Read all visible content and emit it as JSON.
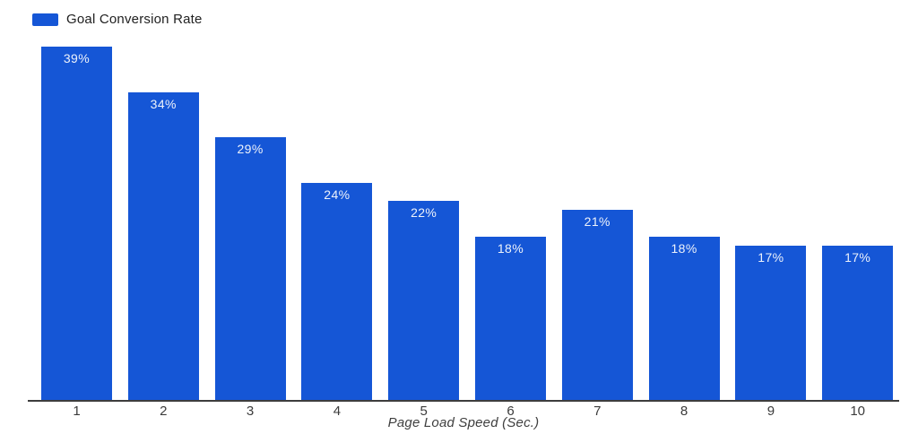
{
  "chart_data": {
    "type": "bar",
    "title": "",
    "categories": [
      "1",
      "2",
      "3",
      "4",
      "5",
      "6",
      "7",
      "8",
      "9",
      "10"
    ],
    "series": [
      {
        "name": "Goal Conversion Rate",
        "values": [
          39,
          34,
          29,
          24,
          22,
          18,
          21,
          18,
          17,
          17
        ]
      }
    ],
    "bar_labels": [
      "39%",
      "34%",
      "29%",
      "24%",
      "22%",
      "18%",
      "21%",
      "18%",
      "17%",
      "17%"
    ],
    "value_suffix": "%",
    "xlabel": "Page Load Speed (Sec.)",
    "ylabel": "",
    "ylim": [
      0,
      40
    ],
    "grid": false,
    "legend_position": "top-left",
    "colors": {
      "bar": "#1556d6",
      "bar_label": "#edf2fb",
      "axis_line": "#3d3d3d",
      "tick_label": "#3b3b3b",
      "axis_title": "#3f3f3f",
      "legend_text": "#212121",
      "background": "#ffffff"
    }
  }
}
